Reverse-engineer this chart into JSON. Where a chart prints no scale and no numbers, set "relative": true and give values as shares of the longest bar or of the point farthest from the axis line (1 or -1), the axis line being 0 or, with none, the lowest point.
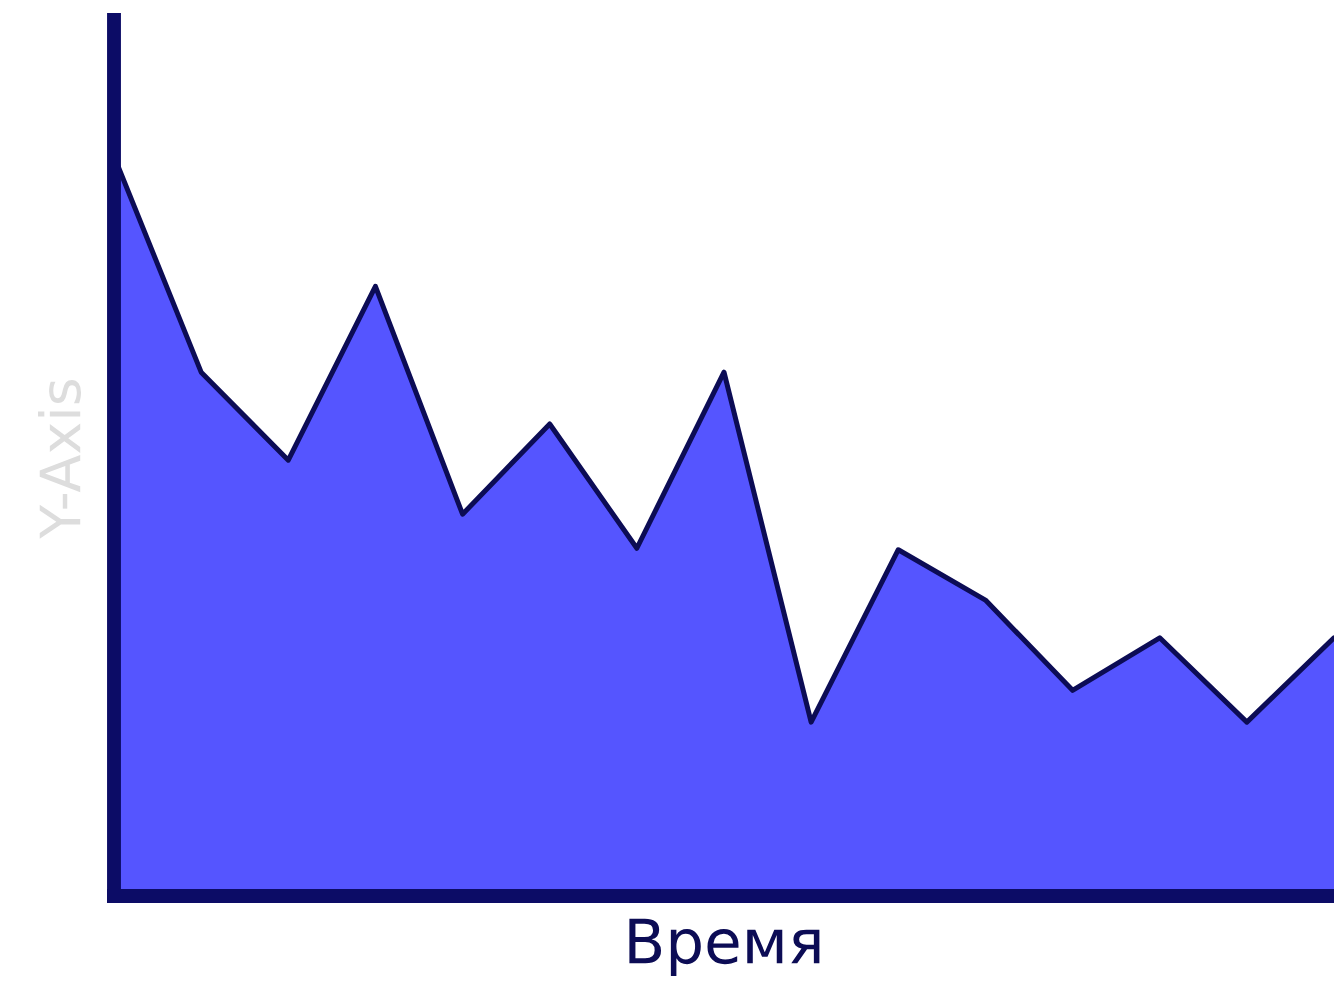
{
  "chart_data": {
    "type": "area",
    "xlabel": "Время",
    "ylabel": "Y-Axis",
    "relative": true,
    "categories": [
      null,
      null,
      null,
      null,
      null,
      null,
      null,
      null,
      null,
      null,
      null,
      null,
      null,
      null,
      null
    ],
    "series": [
      {
        "color": "#5555ff",
        "values": [
          1,
          0.708,
          0.589,
          0.824,
          0.516,
          0.638,
          0.47,
          0.708,
          0.235,
          0.468,
          0.4,
          0.278,
          0.349,
          0.235,
          0.349
        ]
      }
    ],
    "grid": false,
    "legend": false
  }
}
